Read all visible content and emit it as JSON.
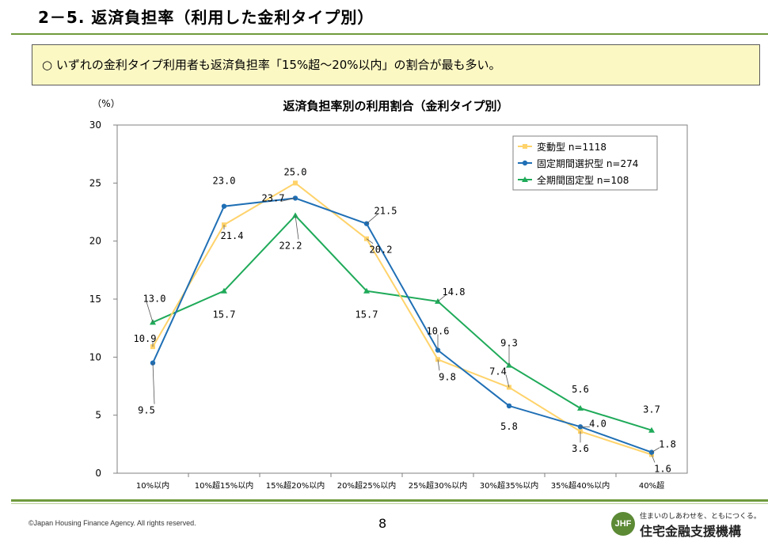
{
  "slide": {
    "title": "2－5. 返済負担率（利用した金利タイプ別）",
    "summary": "○ いずれの金利タイプ利用者も返済負担率「15%超～20%以内」の割合が最も多い。",
    "page_number": "8",
    "copyright": "©Japan Housing Finance Agency. All rights reserved.",
    "logo_mark": "JHF",
    "logo_tagline": "住まいのしあわせを、ともにつくる。",
    "logo_name": "住宅金融支援機構"
  },
  "chart_data": {
    "type": "line",
    "title": "返済負担率別の利用割合（金利タイプ別）",
    "ylabel": "（%）",
    "xlabel": "",
    "ylim": [
      0,
      30
    ],
    "yticks": [
      0,
      5,
      10,
      15,
      20,
      25,
      30
    ],
    "grid": false,
    "legend_position": "top-right",
    "categories": [
      "10%以内",
      "10%超15%以内",
      "15%超20%以内",
      "20%超25%以内",
      "25%超30%以内",
      "30%超35%以内",
      "35%超40%以内",
      "40%超"
    ],
    "series": [
      {
        "name": "変動型 n=1118",
        "color": "#ffd36b",
        "marker": "square",
        "values": [
          10.9,
          21.4,
          25.0,
          20.2,
          9.8,
          7.4,
          3.6,
          1.6
        ],
        "labels": [
          "10.9",
          "21.4",
          "25.0",
          "20.2",
          "9.8",
          "7.4",
          "3.6",
          "1.6"
        ]
      },
      {
        "name": "固定期間選択型 n=274",
        "color": "#1f6fb5",
        "marker": "circle",
        "values": [
          9.5,
          23.0,
          23.7,
          21.5,
          10.6,
          5.8,
          4.0,
          1.8
        ],
        "labels": [
          "9.5",
          "23.0",
          "23.7",
          "21.5",
          "10.6",
          "5.8",
          "4.0",
          "1.8"
        ]
      },
      {
        "name": "全期間固定型 n=108",
        "color": "#1faa59",
        "marker": "triangle",
        "values": [
          13.0,
          15.7,
          22.2,
          15.7,
          14.8,
          9.3,
          5.6,
          3.7
        ],
        "labels": [
          "13.0",
          "15.7",
          "22.2",
          "15.7",
          "14.8",
          "9.3",
          "5.6",
          "3.7"
        ]
      }
    ]
  }
}
